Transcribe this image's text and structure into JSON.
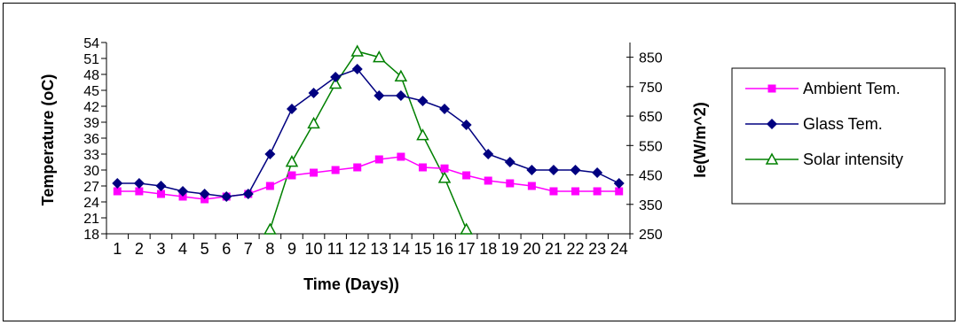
{
  "chart_data": {
    "type": "line",
    "title": "",
    "xlabel": "Time (Days))",
    "ylabel": "Temperature (oC)",
    "y2label": "Ie(W/m^2)",
    "categories": [
      "1",
      "2",
      "3",
      "4",
      "5",
      "6",
      "7",
      "8",
      "9",
      "10",
      "11",
      "12",
      "13",
      "14",
      "15",
      "16",
      "17",
      "18",
      "19",
      "20",
      "21",
      "22",
      "23",
      "24"
    ],
    "ylim": [
      18,
      54
    ],
    "yticks": [
      "18",
      "21",
      "24",
      "27",
      "30",
      "33",
      "36",
      "39",
      "42",
      "45",
      "48",
      "51",
      "54"
    ],
    "y2lim": [
      250,
      900
    ],
    "y2ticks": [
      "250",
      "350",
      "450",
      "550",
      "650",
      "750",
      "850"
    ],
    "legend_position": "right",
    "grid": false,
    "series": [
      {
        "name": "Ambient Tem.",
        "axis": "left",
        "color": "#ff00ff",
        "marker": "square",
        "x": [
          1,
          2,
          3,
          4,
          5,
          6,
          7,
          8,
          9,
          10,
          11,
          12,
          13,
          14,
          15,
          16,
          17,
          18,
          19,
          20,
          21,
          22,
          23,
          24
        ],
        "values": [
          26,
          26,
          25.5,
          25,
          24.5,
          25,
          25.5,
          27,
          29,
          29.5,
          30,
          30.5,
          32,
          32.5,
          30.5,
          30.3,
          29,
          28,
          27.5,
          27,
          26,
          26,
          26,
          26
        ]
      },
      {
        "name": "Glass Tem.",
        "axis": "left",
        "color": "#000080",
        "marker": "diamond",
        "x": [
          1,
          2,
          3,
          4,
          5,
          6,
          7,
          8,
          9,
          10,
          11,
          12,
          13,
          14,
          15,
          16,
          17,
          18,
          19,
          20,
          21,
          22,
          23,
          24
        ],
        "values": [
          27.5,
          27.5,
          27,
          26,
          25.5,
          25,
          25.5,
          33,
          41.5,
          44.5,
          47.5,
          49,
          44,
          44,
          43,
          41.5,
          38.5,
          33,
          31.5,
          30,
          30,
          30,
          29.5,
          27.5
        ]
      },
      {
        "name": "Solar intensity",
        "axis": "right",
        "color": "#008000",
        "marker": "triangle",
        "x": [
          8,
          9,
          10,
          11,
          12,
          13,
          14,
          15,
          16,
          17
        ],
        "values": [
          265,
          495,
          625,
          760,
          870,
          850,
          785,
          585,
          440,
          265
        ]
      }
    ]
  }
}
